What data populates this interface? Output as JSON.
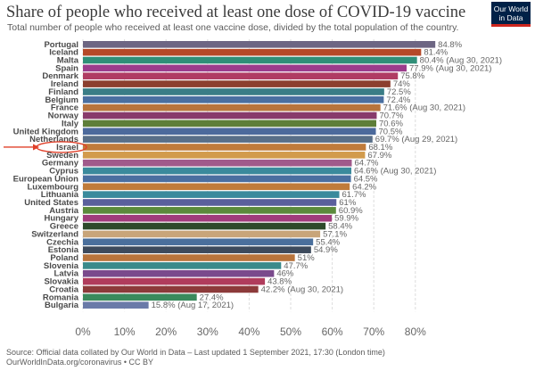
{
  "title": "Share of people who received at least one dose of COVID-19 vaccine",
  "subtitle": "Total number of people who received at least one vaccine dose, divided by the total population of the country.",
  "logo": {
    "line1": "Our World",
    "line2": "in Data"
  },
  "source_line1": "Source: Official data collated by Our World in Data – Last updated 1 September 2021, 17:30 (London time)",
  "source_line2": "OurWorldInData.org/coronavirus • CC BY",
  "colors": {
    "highlight_annotation": "#e0402a",
    "gridline": "#dddddd"
  },
  "chart_data": {
    "type": "bar",
    "orientation": "horizontal",
    "xlim": [
      0,
      85
    ],
    "x_ticks": [
      "0%",
      "10%",
      "20%",
      "30%",
      "40%",
      "50%",
      "60%",
      "70%",
      "80%"
    ],
    "grid": true,
    "highlighted": "Israel",
    "bars": [
      {
        "name": "Portugal",
        "value": 84.8,
        "label": "84.8%",
        "color": "#6d6683"
      },
      {
        "name": "Iceland",
        "value": 81.4,
        "label": "81.4%",
        "color": "#b54928"
      },
      {
        "name": "Malta",
        "value": 80.4,
        "label": "80.4% (Aug 30, 2021)",
        "color": "#2f8f78"
      },
      {
        "name": "Spain",
        "value": 77.9,
        "label": "77.9% (Aug 30, 2021)",
        "color": "#9c3c8c"
      },
      {
        "name": "Denmark",
        "value": 75.8,
        "label": "75.8%",
        "color": "#b03c63"
      },
      {
        "name": "Ireland",
        "value": 74,
        "label": "74%",
        "color": "#8c3f2f"
      },
      {
        "name": "Finland",
        "value": 72.5,
        "label": "72.5%",
        "color": "#3a7d86"
      },
      {
        "name": "Belgium",
        "value": 72.4,
        "label": "72.4%",
        "color": "#4a6fa0"
      },
      {
        "name": "France",
        "value": 71.6,
        "label": "71.6% (Aug 30, 2021)",
        "color": "#b8743c"
      },
      {
        "name": "Norway",
        "value": 70.7,
        "label": "70.7%",
        "color": "#883b6b"
      },
      {
        "name": "Italy",
        "value": 70.6,
        "label": "70.6%",
        "color": "#5e7e39"
      },
      {
        "name": "United Kingdom",
        "value": 70.5,
        "label": "70.5%",
        "color": "#4c6a9c"
      },
      {
        "name": "Netherlands",
        "value": 69.7,
        "label": "69.7% (Aug 29, 2021)",
        "color": "#596f88"
      },
      {
        "name": "Israel",
        "value": 68.1,
        "label": "68.1%",
        "color": "#c07b3a"
      },
      {
        "name": "Sweden",
        "value": 67.9,
        "label": "67.9%",
        "color": "#d29b4c"
      },
      {
        "name": "Germany",
        "value": 64.7,
        "label": "64.7%",
        "color": "#a05a8b"
      },
      {
        "name": "Cyprus",
        "value": 64.6,
        "label": "64.6% (Aug 30, 2021)",
        "color": "#3a8a9c"
      },
      {
        "name": "European Union",
        "value": 64.5,
        "label": "64.5%",
        "color": "#4a6fa0"
      },
      {
        "name": "Luxembourg",
        "value": 64.2,
        "label": "64.2%",
        "color": "#c07b3a"
      },
      {
        "name": "Lithuania",
        "value": 61.7,
        "label": "61.7%",
        "color": "#3a8a9c"
      },
      {
        "name": "United States",
        "value": 61,
        "label": "61%",
        "color": "#5a5f9c"
      },
      {
        "name": "Austria",
        "value": 60.9,
        "label": "60.9%",
        "color": "#5b8a3c"
      },
      {
        "name": "Hungary",
        "value": 59.9,
        "label": "59.9%",
        "color": "#a03c7c"
      },
      {
        "name": "Greece",
        "value": 58.4,
        "label": "58.4%",
        "color": "#2d4a2a"
      },
      {
        "name": "Switzerland",
        "value": 57.1,
        "label": "57.1%",
        "color": "#c8a57a"
      },
      {
        "name": "Czechia",
        "value": 55.4,
        "label": "55.4%",
        "color": "#4a6f9c"
      },
      {
        "name": "Estonia",
        "value": 54.9,
        "label": "54.9%",
        "color": "#3d4a5c"
      },
      {
        "name": "Poland",
        "value": 51,
        "label": "51%",
        "color": "#b8743c"
      },
      {
        "name": "Slovenia",
        "value": 47.7,
        "label": "47.7%",
        "color": "#3a8a8a"
      },
      {
        "name": "Latvia",
        "value": 46,
        "label": "46%",
        "color": "#7a4a8c"
      },
      {
        "name": "Slovakia",
        "value": 43.8,
        "label": "43.8%",
        "color": "#b03c5c"
      },
      {
        "name": "Croatia",
        "value": 42.2,
        "label": "42.2% (Aug 30, 2021)",
        "color": "#8c3a3a"
      },
      {
        "name": "Romania",
        "value": 27.4,
        "label": "27.4%",
        "color": "#3a8a5c"
      },
      {
        "name": "Bulgaria",
        "value": 15.8,
        "label": "15.8% (Aug 17, 2021)",
        "color": "#6a7aa8"
      }
    ]
  }
}
